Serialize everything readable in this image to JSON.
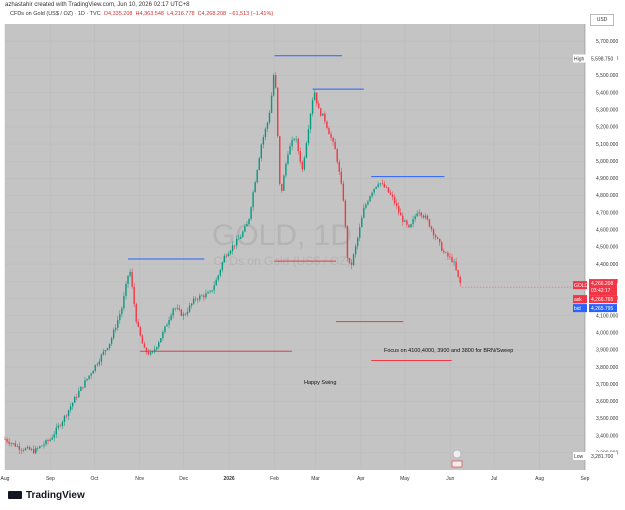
{
  "author_line": "azhastahir created with TradingView.com, Jun 10, 2026 02:17 UTC+8",
  "header": {
    "symbol": "CFDs on Gold (US$ / OZ) · 1D · TVC",
    "open": "O4,335.208",
    "high": "H4,363.548",
    "low": "L4,216.778",
    "close": "C4,268.208",
    "change": "−61,513 (−1.41%)"
  },
  "currency": "USD",
  "watermark": {
    "symbol": "GOLD, 1D",
    "name": "CFDs on Gold (US$ / OZ)"
  },
  "chart_data": {
    "type": "candlestick",
    "ylim": [
      3200,
      5800
    ],
    "yticks": [
      3300,
      3400,
      3500,
      3600,
      3700,
      3800,
      3900,
      4000,
      4100,
      4200,
      4300,
      4400,
      4500,
      4600,
      4700,
      4800,
      4900,
      5000,
      5100,
      5200,
      5300,
      5400,
      5500,
      5600,
      5700
    ],
    "ytick_labels": [
      "3,300.000",
      "3,400.000",
      "3,500.000",
      "3,600.000",
      "3,700.000",
      "3,800.000",
      "3,900.000",
      "4,000.000",
      "4,100.000",
      "4,200.000",
      "4,300.000",
      "4,400.000",
      "4,500.000",
      "4,600.000",
      "4,700.000",
      "4,800.000",
      "4,900.000",
      "5,000.000",
      "5,100.000",
      "5,200.000",
      "5,300.000",
      "5,400.000",
      "5,500.000",
      "5,600.000",
      "5,700.000"
    ],
    "xticks": [
      "Aug",
      "Sep",
      "Oct",
      "Nov",
      "Dec",
      "2026",
      "Feb",
      "Mar",
      "Apr",
      "May",
      "Jun",
      "Jul",
      "Aug",
      "Sep"
    ],
    "xtick_days": [
      0,
      31,
      61,
      92,
      122,
      153,
      184,
      212,
      243,
      273,
      304,
      334,
      365,
      396
    ],
    "anchors": [
      [
        0,
        3380
      ],
      [
        10,
        3330
      ],
      [
        20,
        3310
      ],
      [
        31,
        3380
      ],
      [
        40,
        3500
      ],
      [
        50,
        3650
      ],
      [
        61,
        3800
      ],
      [
        72,
        3950
      ],
      [
        80,
        4150
      ],
      [
        85,
        4380
      ],
      [
        90,
        4050
      ],
      [
        95,
        3900
      ],
      [
        100,
        3870
      ],
      [
        108,
        4000
      ],
      [
        115,
        4150
      ],
      [
        122,
        4100
      ],
      [
        130,
        4200
      ],
      [
        140,
        4230
      ],
      [
        145,
        4320
      ],
      [
        150,
        4450
      ],
      [
        153,
        4480
      ],
      [
        160,
        4550
      ],
      [
        166,
        4640
      ],
      [
        170,
        4850
      ],
      [
        175,
        5100
      ],
      [
        180,
        5250
      ],
      [
        183,
        5450
      ],
      [
        184,
        5580
      ],
      [
        188,
        4780
      ],
      [
        193,
        5050
      ],
      [
        198,
        5150
      ],
      [
        203,
        4950
      ],
      [
        208,
        5250
      ],
      [
        211,
        5420
      ],
      [
        214,
        5300
      ],
      [
        218,
        5250
      ],
      [
        222,
        5150
      ],
      [
        226,
        5050
      ],
      [
        231,
        4780
      ],
      [
        234,
        4420
      ],
      [
        236,
        4380
      ],
      [
        240,
        4520
      ],
      [
        245,
        4720
      ],
      [
        250,
        4820
      ],
      [
        255,
        4880
      ],
      [
        260,
        4840
      ],
      [
        265,
        4780
      ],
      [
        270,
        4680
      ],
      [
        276,
        4600
      ],
      [
        282,
        4720
      ],
      [
        288,
        4660
      ],
      [
        294,
        4560
      ],
      [
        300,
        4460
      ],
      [
        306,
        4420
      ],
      [
        310,
        4300
      ],
      [
        312,
        4268
      ]
    ],
    "levels": [
      {
        "color": "#2962ff",
        "price": 4430,
        "from": 84,
        "to": 136
      },
      {
        "color": "#2962ff",
        "price": 5615,
        "from": 184,
        "to": 230
      },
      {
        "color": "#2962ff",
        "price": 5420,
        "from": 210,
        "to": 245
      },
      {
        "color": "#2962ff",
        "price": 4910,
        "from": 250,
        "to": 300
      },
      {
        "color": "#f23645",
        "price": 3892,
        "from": 92,
        "to": 196
      },
      {
        "color": "#f23645",
        "price": 4418,
        "from": 184,
        "to": 226
      },
      {
        "color": "#f23645",
        "price": 4065,
        "from": 226,
        "to": 272
      },
      {
        "color": "#f23645",
        "price": 3838,
        "from": 250,
        "to": 305
      }
    ],
    "annotations": [
      "Focus on 4100,4000, 3900 and 3800 for BRN/Sweep",
      "Happy Swing"
    ],
    "markers": {
      "high_label": "High",
      "high_value": "5,598.750",
      "low_label": "Low",
      "low_value": "3,281.700",
      "gold_label": "GOLD",
      "gold_value": "4,266.208",
      "gold_countdown": "03:42:17",
      "ask_label": "ask",
      "ask_value": "4,266.765",
      "bid_label": "bid",
      "bid_value": "4,265.795"
    },
    "colors": {
      "up": "#089981",
      "down": "#f23645",
      "blue": "#2962ff",
      "red": "#f23645"
    }
  },
  "branding": "TradingView"
}
